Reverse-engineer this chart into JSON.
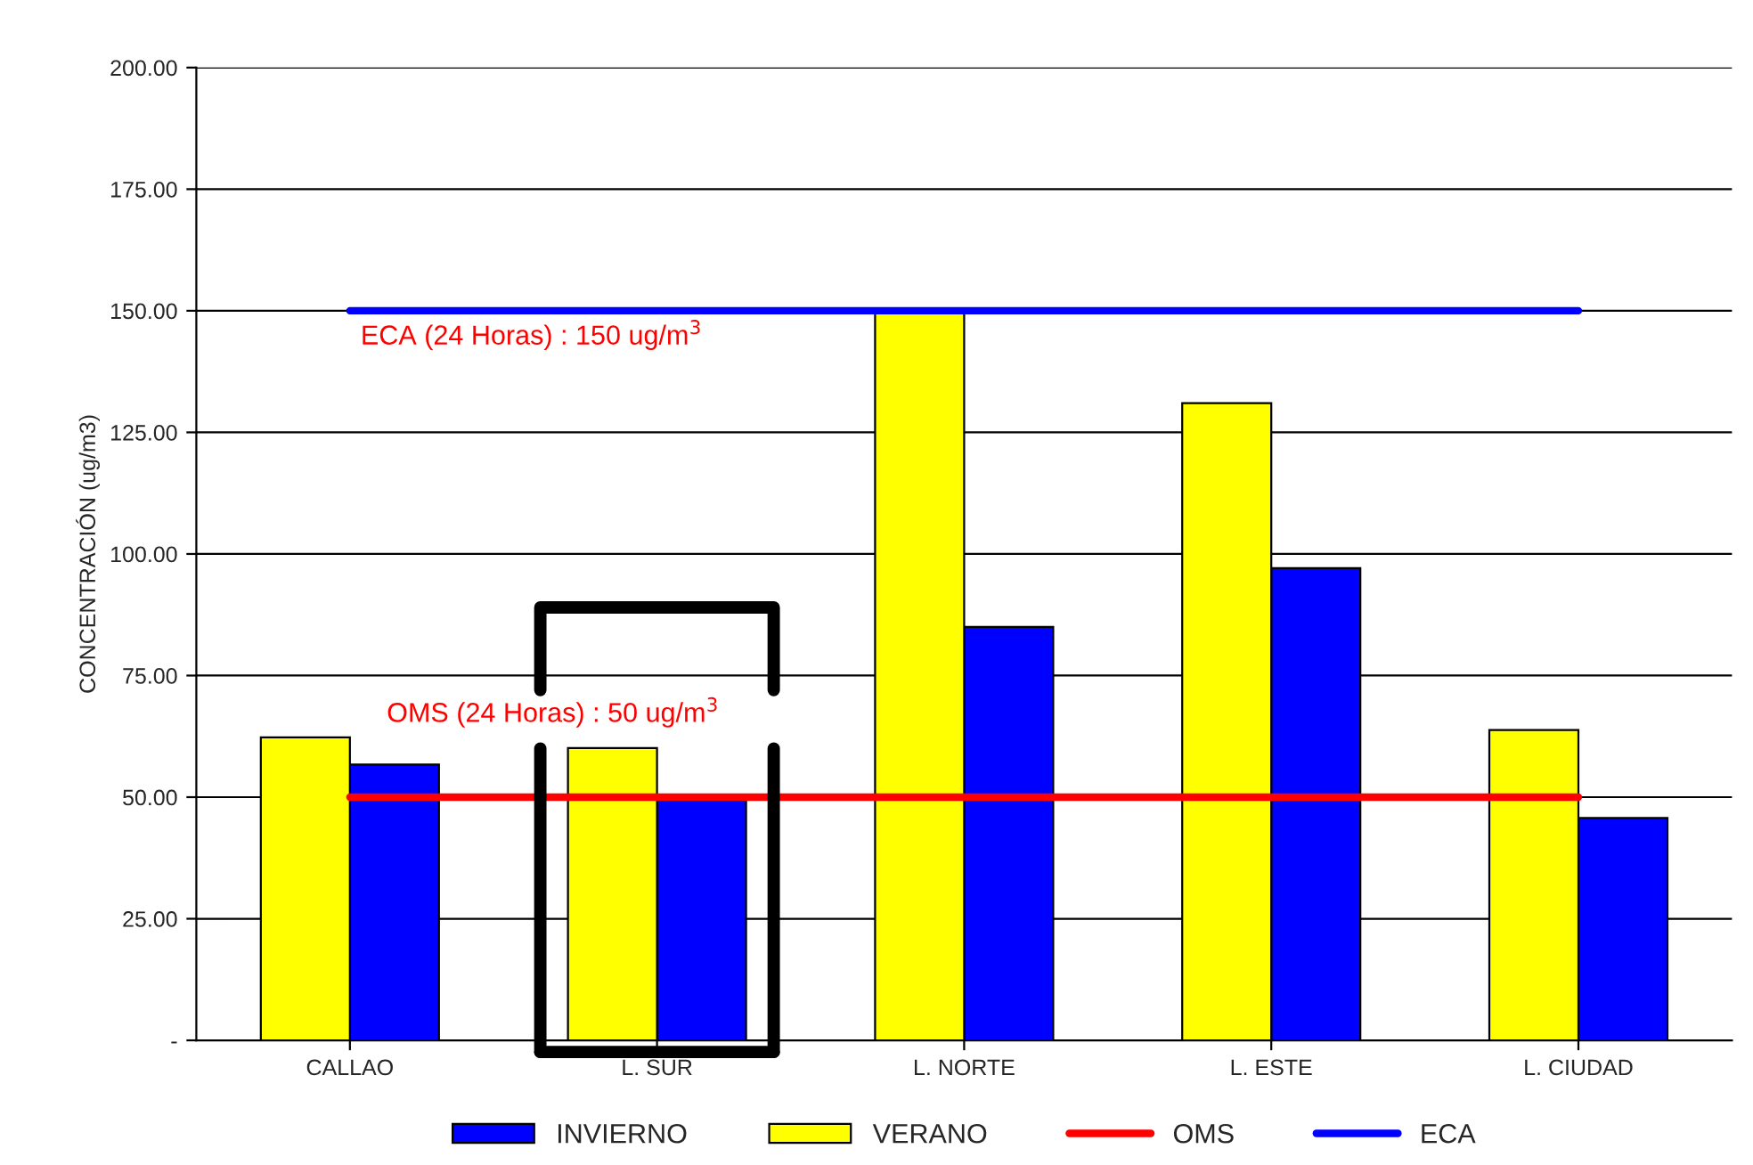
{
  "chart_data": {
    "type": "bar",
    "ylabel": "CONCENTRACIÓN (ug/m3)",
    "categories": [
      "CALLAO",
      "L. SUR",
      "L. NORTE",
      "L. ESTE",
      "L. CIUDAD"
    ],
    "series": [
      {
        "name": "INVIERNO",
        "color": "#0000ff",
        "values": [
          56.7,
          49.4,
          85.0,
          97.1,
          45.7
        ]
      },
      {
        "name": "VERANO",
        "color": "#ffff00",
        "values": [
          62.3,
          60.1,
          149.5,
          131.0,
          63.8
        ]
      },
      {
        "name": "OMS",
        "type": "line",
        "color": "#ff0000",
        "values": [
          50,
          50,
          50,
          50,
          50
        ]
      },
      {
        "name": "ECA",
        "type": "line",
        "color": "#0000ff",
        "values": [
          150,
          150,
          150,
          150,
          150
        ]
      }
    ],
    "ylim": [
      0,
      200
    ],
    "yticks": [
      {
        "value": 0,
        "label": "-"
      },
      {
        "value": 25,
        "label": "25.00"
      },
      {
        "value": 50,
        "label": "50.00"
      },
      {
        "value": 75,
        "label": "75.00"
      },
      {
        "value": 100,
        "label": "100.00"
      },
      {
        "value": 125,
        "label": "125.00"
      },
      {
        "value": 150,
        "label": "150.00"
      },
      {
        "value": 175,
        "label": "175.00"
      },
      {
        "value": 200,
        "label": "200.00"
      }
    ],
    "annotations": [
      "ECA (24 Horas) : 150 ug/m$^{3}$",
      "OMS (24 Horas) : 50 ug/m$^{3}$"
    ],
    "grid": "y",
    "legend": "bottom"
  }
}
